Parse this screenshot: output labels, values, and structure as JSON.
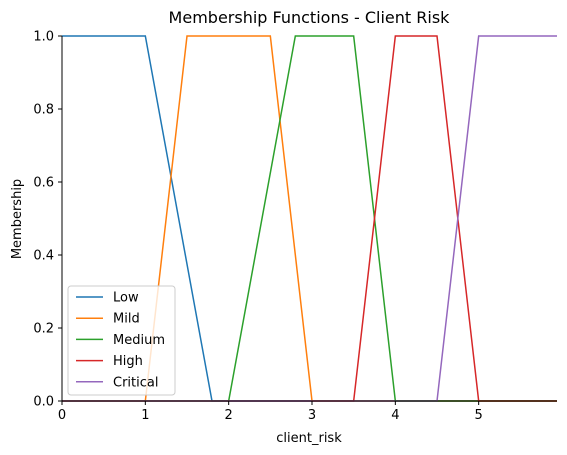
{
  "chart_data": {
    "type": "line",
    "title": "Membership Functions - Client Risk",
    "xlabel": "client_risk",
    "ylabel": "Membership",
    "xlim": [
      0,
      5.94
    ],
    "ylim": [
      0,
      1.0
    ],
    "x_ticks": [
      0,
      1,
      2,
      3,
      4,
      5
    ],
    "y_ticks": [
      0.0,
      0.2,
      0.4,
      0.6,
      0.8,
      1.0
    ],
    "x_tick_labels": [
      "0",
      "1",
      "2",
      "3",
      "4",
      "5"
    ],
    "y_tick_labels": [
      "0.0",
      "0.2",
      "0.4",
      "0.6",
      "0.8",
      "1.0"
    ],
    "grid": false,
    "legend_position": "lower-left",
    "series": [
      {
        "name": "Low",
        "color": "#1f77b4",
        "x": [
          0,
          1.0,
          1.8,
          5.94
        ],
        "y": [
          1,
          1,
          0,
          0
        ]
      },
      {
        "name": "Mild",
        "color": "#ff7f0e",
        "x": [
          0,
          1.0,
          1.5,
          2.5,
          3.0,
          5.94
        ],
        "y": [
          0,
          0,
          1,
          1,
          0,
          0
        ]
      },
      {
        "name": "Medium",
        "color": "#2ca02c",
        "x": [
          0,
          2.0,
          2.8,
          3.5,
          4.0,
          5.94
        ],
        "y": [
          0,
          0,
          1,
          1,
          0,
          0
        ]
      },
      {
        "name": "High",
        "color": "#d62728",
        "x": [
          0,
          3.5,
          4.0,
          4.5,
          5.0,
          5.94
        ],
        "y": [
          0,
          0,
          1,
          1,
          0,
          0
        ]
      },
      {
        "name": "Critical",
        "color": "#9467bd",
        "x": [
          0,
          4.5,
          5.0,
          5.94
        ],
        "y": [
          0,
          0,
          1,
          1
        ]
      }
    ]
  }
}
